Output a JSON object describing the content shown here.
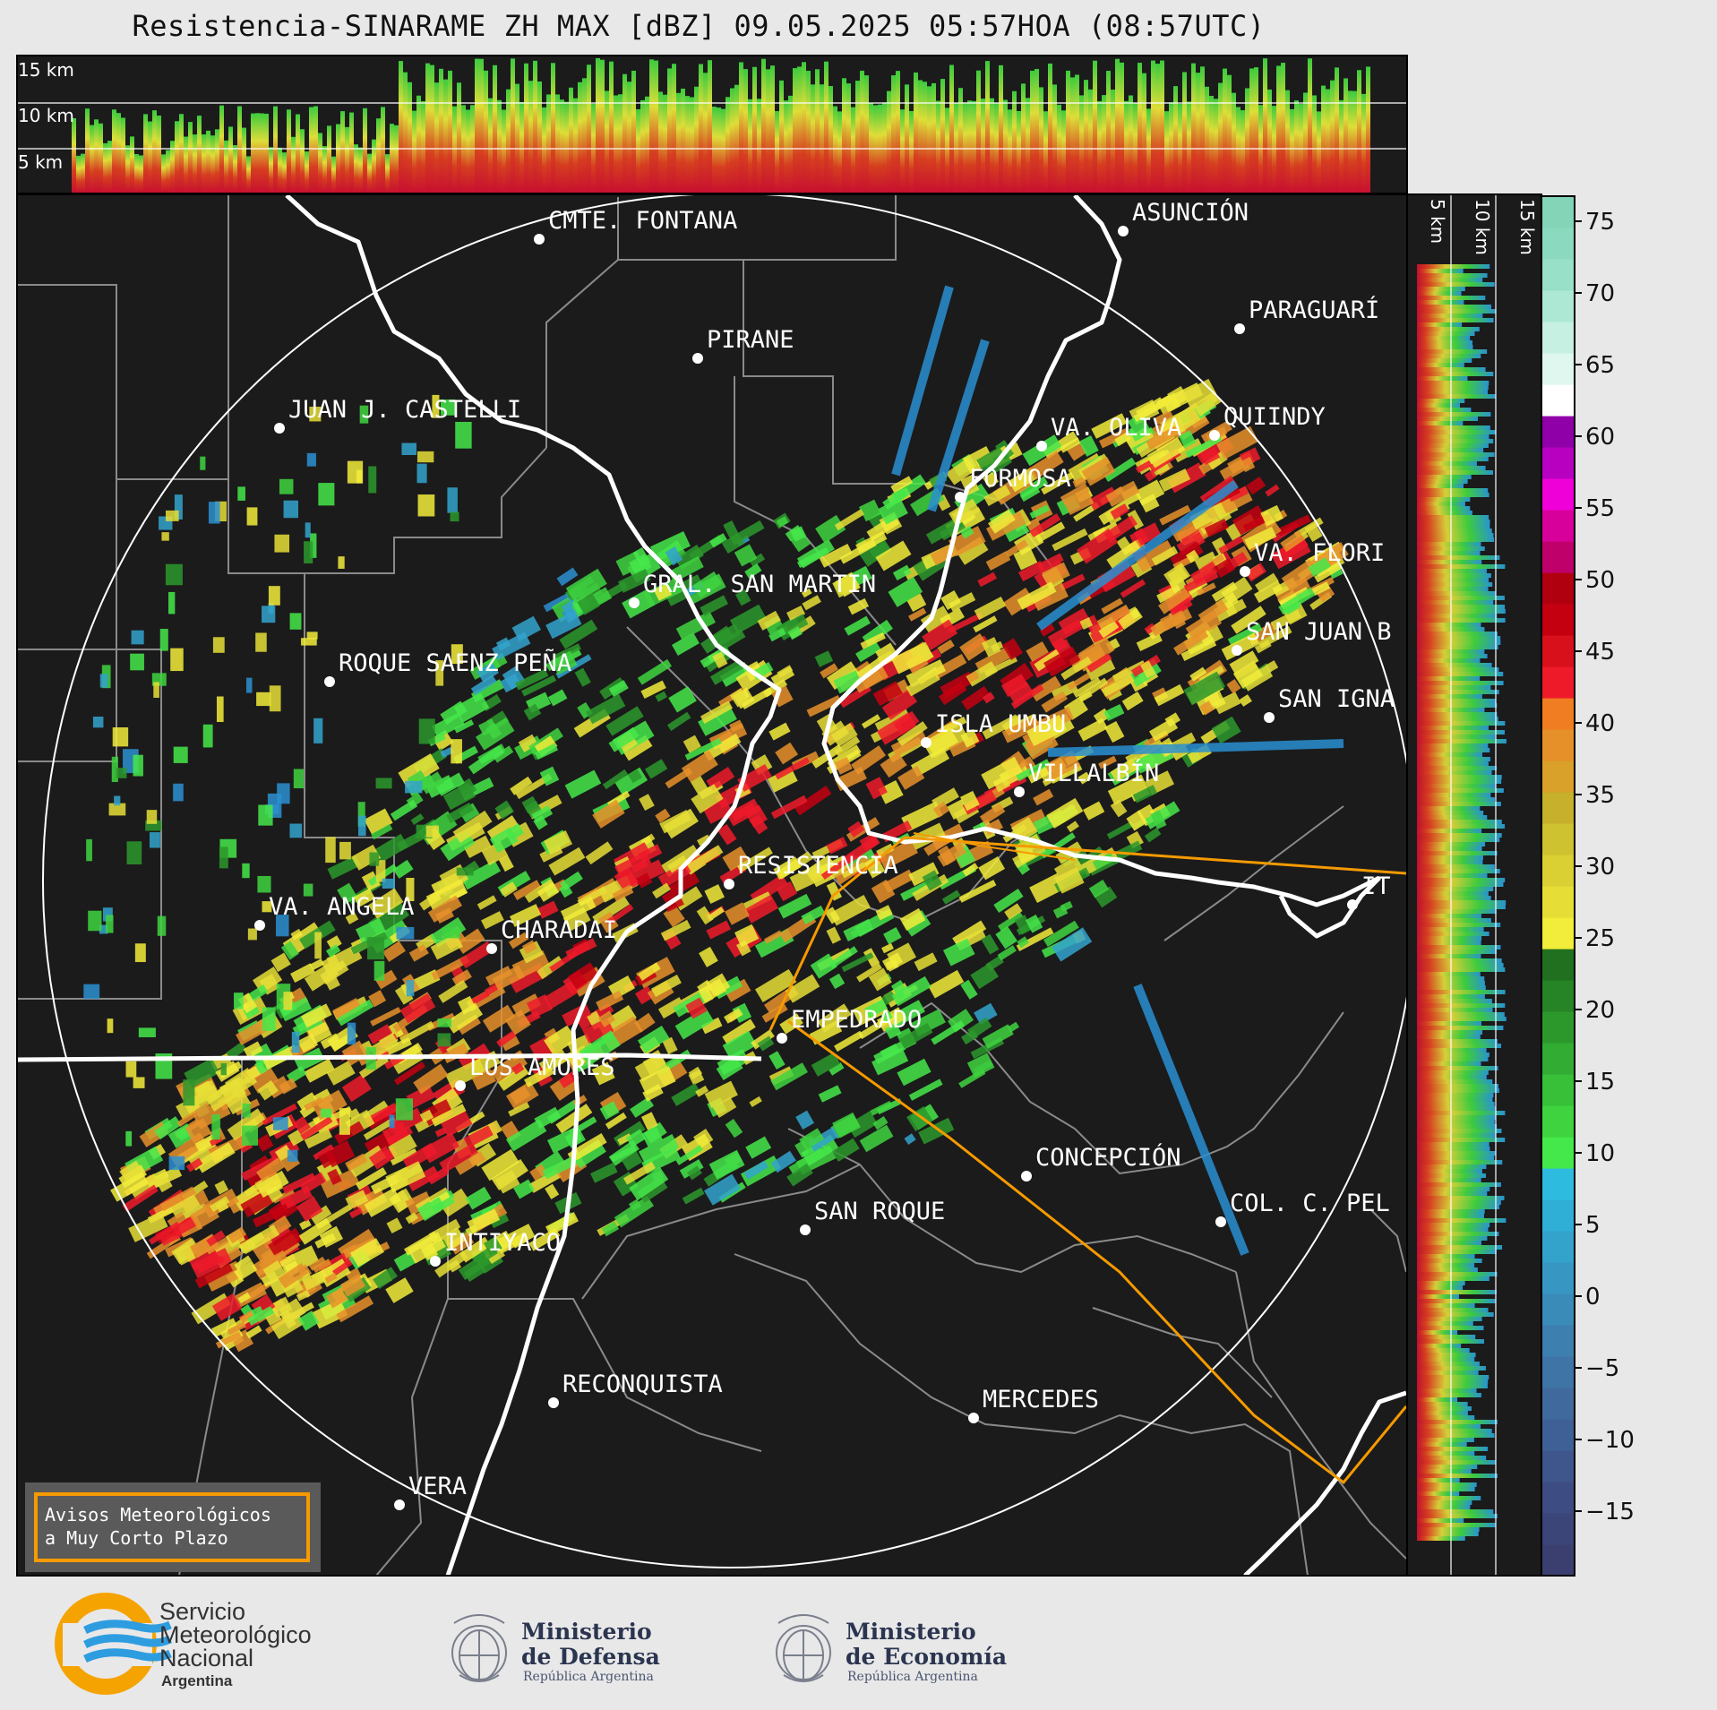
{
  "title": "Resistencia-SINARAME ZH MAX [dBZ] 09.05.2025 05:57HOA (08:57UTC)",
  "height_labels_top": [
    "15 km",
    "10 km",
    "5 km"
  ],
  "height_labels_side": [
    "5 km",
    "10 km",
    "15 km"
  ],
  "colorbar": {
    "ticks": [
      "75",
      "70",
      "65",
      "60",
      "55",
      "50",
      "45",
      "40",
      "35",
      "30",
      "25",
      "20",
      "15",
      "10",
      "5",
      "0",
      "−5",
      "−10",
      "−15"
    ]
  },
  "cities": [
    "CMTE. FONTANA",
    "ASUNCIÓN",
    "PARAGUARÍ",
    "PIRANE",
    "JUAN J. CASTELLI",
    "VA. OLIVA",
    "QUIINDY",
    "FORMOSA",
    "VA. FLORI",
    "GRAL. SAN MARTIN",
    "SAN JUAN B",
    "ROQUE SAENZ PEÑA",
    "SAN IGNA",
    "ISLA UMBU",
    "VILLALBÍN",
    "RESISTENCIA",
    "VA. ANGELA",
    "CHARADAI",
    "IT",
    "EMPEDRADO",
    "LOS AMORES",
    "CONCEPCIÓN",
    "COL. C. PEL",
    "SAN ROQUE",
    "INTIYACO",
    "RECONQUISTA",
    "MERCEDES",
    "VERA"
  ],
  "warning_box": [
    "Avisos Meteorológicos",
    "a Muy Corto Plazo"
  ],
  "footer": {
    "smn": [
      "Servicio",
      "Meteorológico",
      "Nacional",
      "Argentina"
    ],
    "defensa": [
      "Ministerio",
      "de Defensa",
      "República Argentina"
    ],
    "economia": [
      "Ministerio",
      "de Economía",
      "República Argentina"
    ]
  },
  "colors": {
    "map_bg": "#1b1b1b",
    "range_ring": "#ffffff",
    "river": "#ffffff",
    "border": "#8a8a8a",
    "warning_line": "#f59a00"
  }
}
